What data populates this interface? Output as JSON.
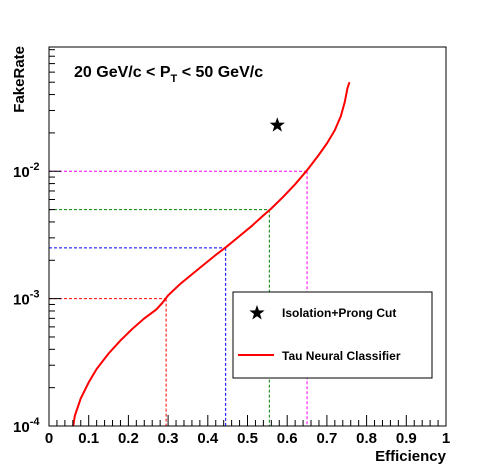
{
  "chart_data": {
    "type": "line",
    "title": "",
    "xlabel": "Efficiency",
    "ylabel": "FakeRate",
    "xlim": [
      0,
      1
    ],
    "ylim": [
      0.0001,
      0.05
    ],
    "yscale": "log",
    "x_ticks": [
      "0",
      "0.1",
      "0.2",
      "0.3",
      "0.4",
      "0.5",
      "0.6",
      "0.7",
      "0.8",
      "0.9",
      "1"
    ],
    "y_ticks": [
      {
        "value": 0.0001,
        "base": "10",
        "exp": "-4"
      },
      {
        "value": 0.001,
        "base": "10",
        "exp": "-3"
      },
      {
        "value": 0.01,
        "base": "10",
        "exp": "-2"
      }
    ],
    "annotation": {
      "prefix": "20 GeV/c < P",
      "subscript": "T",
      "suffix": " < 50 GeV/c"
    },
    "series": [
      {
        "name": "Tau Neural Classifier",
        "color": "#ff0000",
        "points": [
          [
            0.061,
            0.0001
          ],
          [
            0.065,
            0.00012
          ],
          [
            0.08,
            0.000165
          ],
          [
            0.1,
            0.00022
          ],
          [
            0.12,
            0.00028
          ],
          [
            0.15,
            0.00037
          ],
          [
            0.18,
            0.00047
          ],
          [
            0.21,
            0.00058
          ],
          [
            0.24,
            0.0007
          ],
          [
            0.27,
            0.00082
          ],
          [
            0.285,
            0.00092
          ],
          [
            0.3,
            0.00106
          ],
          [
            0.33,
            0.0013
          ],
          [
            0.36,
            0.00155
          ],
          [
            0.39,
            0.00185
          ],
          [
            0.42,
            0.0022
          ],
          [
            0.45,
            0.0026
          ],
          [
            0.48,
            0.0031
          ],
          [
            0.51,
            0.0037
          ],
          [
            0.54,
            0.0045
          ],
          [
            0.56,
            0.0051
          ],
          [
            0.59,
            0.0063
          ],
          [
            0.62,
            0.0079
          ],
          [
            0.65,
            0.0102
          ],
          [
            0.68,
            0.0135
          ],
          [
            0.7,
            0.0165
          ],
          [
            0.72,
            0.021
          ],
          [
            0.735,
            0.027
          ],
          [
            0.745,
            0.035
          ],
          [
            0.752,
            0.045
          ],
          [
            0.757,
            0.05
          ]
        ]
      },
      {
        "name": "Isolation+Prong Cut",
        "color": "#000000",
        "marker": "star",
        "points": [
          [
            0.575,
            0.023
          ]
        ]
      }
    ],
    "guides": [
      {
        "efficiency": 0.295,
        "fakerate": 0.001,
        "color": "#ff0000"
      },
      {
        "efficiency": 0.445,
        "fakerate": 0.0025,
        "color": "#0000ff"
      },
      {
        "efficiency": 0.555,
        "fakerate": 0.005,
        "color": "#008000"
      },
      {
        "efficiency": 0.65,
        "fakerate": 0.01,
        "color": "#ff00ff"
      }
    ],
    "legend": {
      "position": "bottom-right",
      "entries": [
        "Isolation+Prong Cut",
        "Tau Neural Classifier"
      ]
    }
  }
}
